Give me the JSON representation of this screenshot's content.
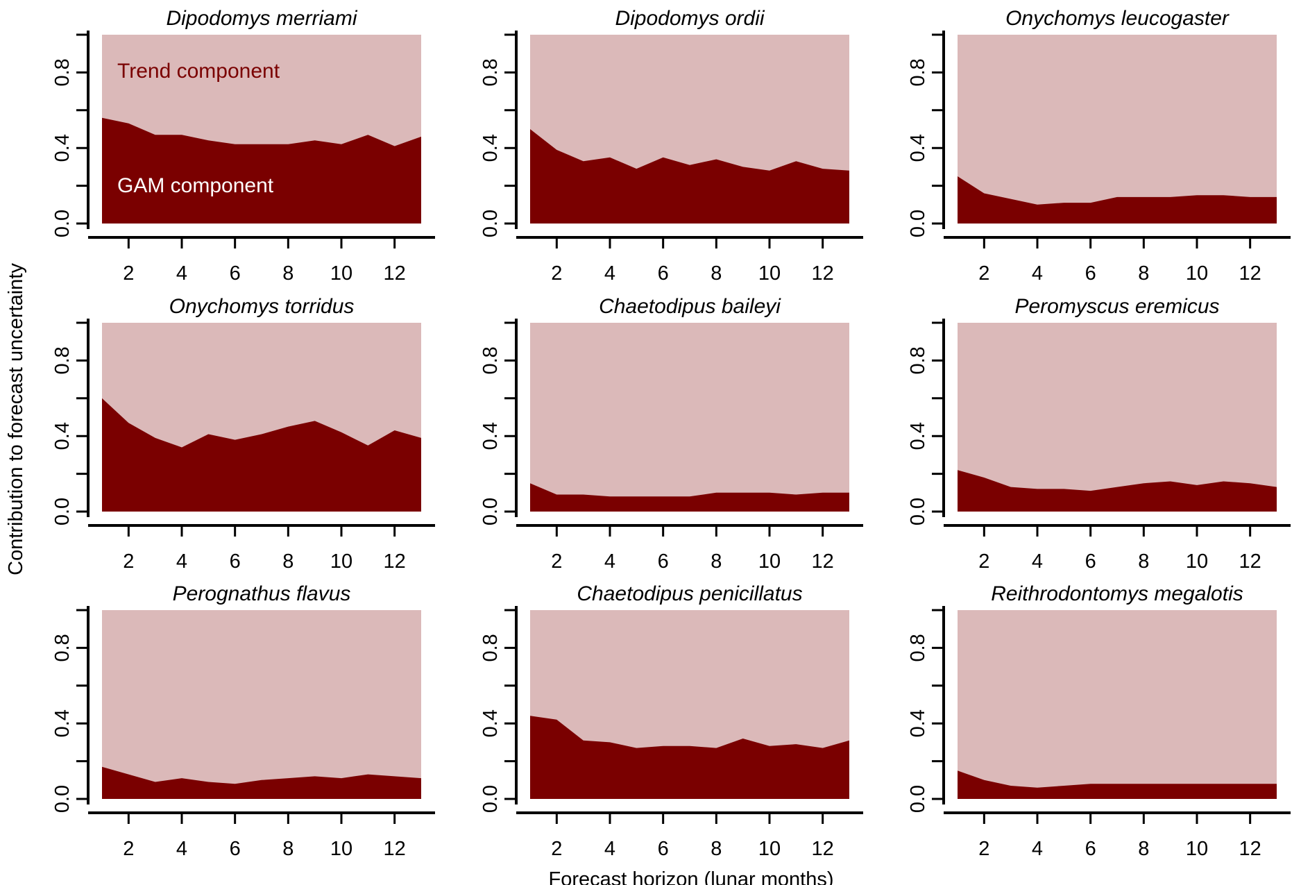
{
  "figure": {
    "ylabel": "Contribution to forecast uncertainty",
    "xlabel": "Forecast horizon (lunar months)",
    "annotations": {
      "trend": "Trend component",
      "gam": "GAM component"
    }
  },
  "colors": {
    "trend": "#dbb9b9",
    "gam": "#7a0000",
    "annotation_trend": "#7a0000",
    "annotation_gam": "#ffffff",
    "axis": "#000000"
  },
  "chart_data": [
    {
      "type": "area",
      "title": "Dipodomys merriami",
      "x": [
        1,
        2,
        3,
        4,
        5,
        6,
        7,
        8,
        9,
        10,
        11,
        12,
        13
      ],
      "series": [
        {
          "name": "GAM component",
          "values": [
            0.56,
            0.53,
            0.47,
            0.47,
            0.44,
            0.42,
            0.42,
            0.42,
            0.44,
            0.42,
            0.47,
            0.41,
            0.46
          ]
        }
      ],
      "xlim": [
        1,
        13
      ],
      "ylim": [
        0,
        1
      ],
      "xticks": [
        2,
        4,
        6,
        8,
        10,
        12
      ],
      "yticks": [
        "0.0",
        "0.4",
        "0.8"
      ]
    },
    {
      "type": "area",
      "title": "Dipodomys ordii",
      "x": [
        1,
        2,
        3,
        4,
        5,
        6,
        7,
        8,
        9,
        10,
        11,
        12,
        13
      ],
      "series": [
        {
          "name": "GAM component",
          "values": [
            0.5,
            0.39,
            0.33,
            0.35,
            0.29,
            0.35,
            0.31,
            0.34,
            0.3,
            0.28,
            0.33,
            0.29,
            0.28
          ]
        }
      ],
      "xlim": [
        1,
        13
      ],
      "ylim": [
        0,
        1
      ],
      "xticks": [
        2,
        4,
        6,
        8,
        10,
        12
      ],
      "yticks": [
        "0.0",
        "0.4",
        "0.8"
      ]
    },
    {
      "type": "area",
      "title": "Onychomys leucogaster",
      "x": [
        1,
        2,
        3,
        4,
        5,
        6,
        7,
        8,
        9,
        10,
        11,
        12,
        13
      ],
      "series": [
        {
          "name": "GAM component",
          "values": [
            0.25,
            0.16,
            0.13,
            0.1,
            0.11,
            0.11,
            0.14,
            0.14,
            0.14,
            0.15,
            0.15,
            0.14,
            0.14
          ]
        }
      ],
      "xlim": [
        1,
        13
      ],
      "ylim": [
        0,
        1
      ],
      "xticks": [
        2,
        4,
        6,
        8,
        10,
        12
      ],
      "yticks": [
        "0.0",
        "0.4",
        "0.8"
      ]
    },
    {
      "type": "area",
      "title": "Onychomys torridus",
      "x": [
        1,
        2,
        3,
        4,
        5,
        6,
        7,
        8,
        9,
        10,
        11,
        12,
        13
      ],
      "series": [
        {
          "name": "GAM component",
          "values": [
            0.6,
            0.47,
            0.39,
            0.34,
            0.41,
            0.38,
            0.41,
            0.45,
            0.48,
            0.42,
            0.35,
            0.43,
            0.39
          ]
        }
      ],
      "xlim": [
        1,
        13
      ],
      "ylim": [
        0,
        1
      ],
      "xticks": [
        2,
        4,
        6,
        8,
        10,
        12
      ],
      "yticks": [
        "0.0",
        "0.4",
        "0.8"
      ]
    },
    {
      "type": "area",
      "title": "Chaetodipus baileyi",
      "x": [
        1,
        2,
        3,
        4,
        5,
        6,
        7,
        8,
        9,
        10,
        11,
        12,
        13
      ],
      "series": [
        {
          "name": "GAM component",
          "values": [
            0.15,
            0.09,
            0.09,
            0.08,
            0.08,
            0.08,
            0.08,
            0.1,
            0.1,
            0.1,
            0.09,
            0.1,
            0.1
          ]
        }
      ],
      "xlim": [
        1,
        13
      ],
      "ylim": [
        0,
        1
      ],
      "xticks": [
        2,
        4,
        6,
        8,
        10,
        12
      ],
      "yticks": [
        "0.0",
        "0.4",
        "0.8"
      ]
    },
    {
      "type": "area",
      "title": "Peromyscus eremicus",
      "x": [
        1,
        2,
        3,
        4,
        5,
        6,
        7,
        8,
        9,
        10,
        11,
        12,
        13
      ],
      "series": [
        {
          "name": "GAM component",
          "values": [
            0.22,
            0.18,
            0.13,
            0.12,
            0.12,
            0.11,
            0.13,
            0.15,
            0.16,
            0.14,
            0.16,
            0.15,
            0.13
          ]
        }
      ],
      "xlim": [
        1,
        13
      ],
      "ylim": [
        0,
        1
      ],
      "xticks": [
        2,
        4,
        6,
        8,
        10,
        12
      ],
      "yticks": [
        "0.0",
        "0.4",
        "0.8"
      ]
    },
    {
      "type": "area",
      "title": "Perognathus flavus",
      "x": [
        1,
        2,
        3,
        4,
        5,
        6,
        7,
        8,
        9,
        10,
        11,
        12,
        13
      ],
      "series": [
        {
          "name": "GAM component",
          "values": [
            0.17,
            0.13,
            0.09,
            0.11,
            0.09,
            0.08,
            0.1,
            0.11,
            0.12,
            0.11,
            0.13,
            0.12,
            0.11
          ]
        }
      ],
      "xlim": [
        1,
        13
      ],
      "ylim": [
        0,
        1
      ],
      "xticks": [
        2,
        4,
        6,
        8,
        10,
        12
      ],
      "yticks": [
        "0.0",
        "0.4",
        "0.8"
      ]
    },
    {
      "type": "area",
      "title": "Chaetodipus penicillatus",
      "x": [
        1,
        2,
        3,
        4,
        5,
        6,
        7,
        8,
        9,
        10,
        11,
        12,
        13
      ],
      "series": [
        {
          "name": "GAM component",
          "values": [
            0.44,
            0.42,
            0.31,
            0.3,
            0.27,
            0.28,
            0.28,
            0.27,
            0.32,
            0.28,
            0.29,
            0.27,
            0.31
          ]
        }
      ],
      "xlim": [
        1,
        13
      ],
      "ylim": [
        0,
        1
      ],
      "xticks": [
        2,
        4,
        6,
        8,
        10,
        12
      ],
      "yticks": [
        "0.0",
        "0.4",
        "0.8"
      ]
    },
    {
      "type": "area",
      "title": "Reithrodontomys megalotis",
      "x": [
        1,
        2,
        3,
        4,
        5,
        6,
        7,
        8,
        9,
        10,
        11,
        12,
        13
      ],
      "series": [
        {
          "name": "GAM component",
          "values": [
            0.15,
            0.1,
            0.07,
            0.06,
            0.07,
            0.08,
            0.08,
            0.08,
            0.08,
            0.08,
            0.08,
            0.08,
            0.08
          ]
        }
      ],
      "xlim": [
        1,
        13
      ],
      "ylim": [
        0,
        1
      ],
      "xticks": [
        2,
        4,
        6,
        8,
        10,
        12
      ],
      "yticks": [
        "0.0",
        "0.4",
        "0.8"
      ]
    }
  ]
}
